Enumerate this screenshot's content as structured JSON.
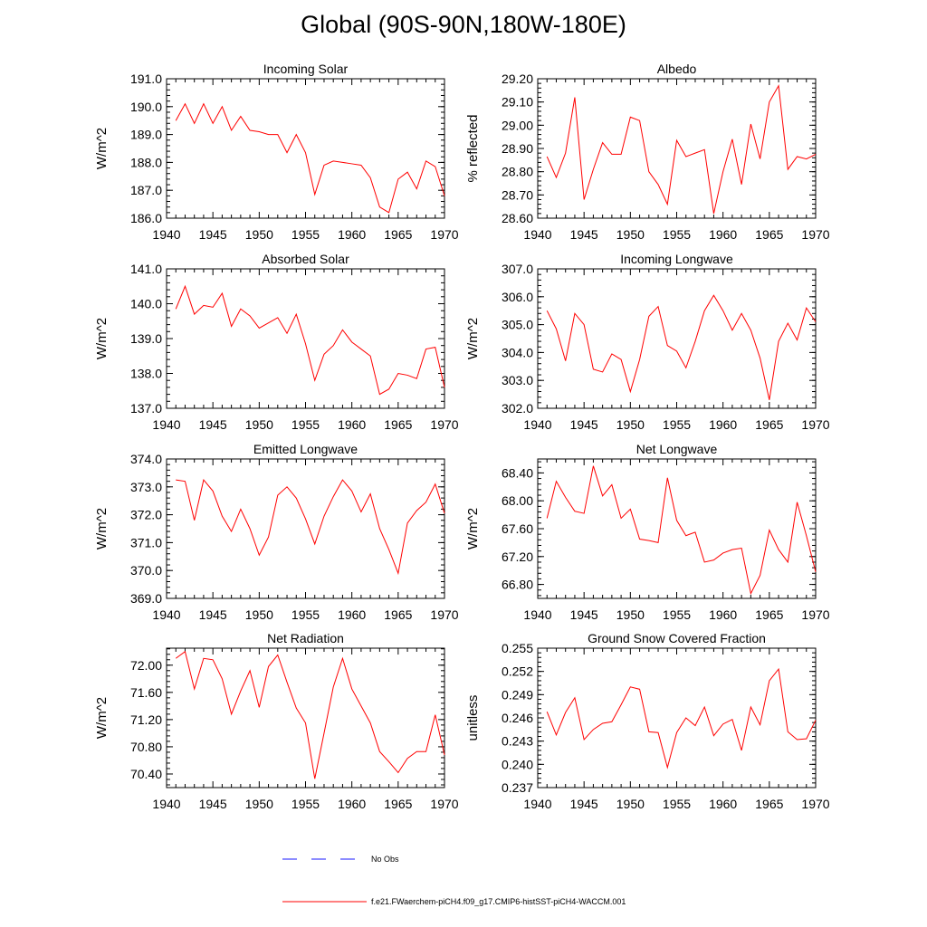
{
  "page_title": "Global (90S-90N,180W-180E)",
  "legend": {
    "obs_label": "No Obs",
    "obs_color": "#1a1aff",
    "model_label": "f.e21.FWaerchem-piCH4.f09_g17.CMIP6-histSST-piCH4-WACCM.001",
    "model_color": "#ff0000"
  },
  "chart_data": [
    {
      "type": "line",
      "title": "Incoming Solar",
      "ylabel": "W/m^2",
      "xlim": [
        1940,
        1970
      ],
      "ylim": [
        186.0,
        191.0
      ],
      "xticks": [
        1940,
        1945,
        1950,
        1955,
        1960,
        1965,
        1970
      ],
      "yticks": [
        "186.0",
        "187.0",
        "188.0",
        "189.0",
        "190.0",
        "191.0"
      ],
      "series": [
        {
          "color": "#ff0000",
          "x": [
            1941,
            1942,
            1943,
            1944,
            1945,
            1946,
            1947,
            1948,
            1949,
            1950,
            1951,
            1952,
            1953,
            1954,
            1955,
            1956,
            1957,
            1958,
            1959,
            1960,
            1961,
            1962,
            1963,
            1964,
            1965,
            1966,
            1967,
            1968,
            1969,
            1970
          ],
          "y": [
            189.5,
            190.1,
            189.4,
            190.1,
            189.4,
            190.0,
            189.15,
            189.65,
            189.15,
            189.1,
            189.0,
            189.0,
            188.35,
            189.0,
            188.35,
            186.85,
            187.9,
            188.05,
            188.0,
            187.95,
            187.9,
            187.45,
            186.4,
            186.2,
            187.4,
            187.65,
            187.05,
            188.05,
            187.85,
            186.8
          ]
        }
      ]
    },
    {
      "type": "line",
      "title": "Albedo",
      "ylabel": "% reflected",
      "xlim": [
        1940,
        1970
      ],
      "ylim": [
        28.6,
        29.2
      ],
      "xticks": [
        1940,
        1945,
        1950,
        1955,
        1960,
        1965,
        1970
      ],
      "yticks": [
        "28.60",
        "28.70",
        "28.80",
        "28.90",
        "29.00",
        "29.10",
        "29.20"
      ],
      "series": [
        {
          "color": "#ff0000",
          "x": [
            1941,
            1942,
            1943,
            1944,
            1945,
            1946,
            1947,
            1948,
            1949,
            1950,
            1951,
            1952,
            1953,
            1954,
            1955,
            1956,
            1957,
            1958,
            1959,
            1960,
            1961,
            1962,
            1963,
            1964,
            1965,
            1966,
            1967,
            1968,
            1969,
            1970
          ],
          "y": [
            28.865,
            28.775,
            28.88,
            29.12,
            28.68,
            28.81,
            28.925,
            28.875,
            28.875,
            29.035,
            29.02,
            28.8,
            28.745,
            28.66,
            28.935,
            28.865,
            28.88,
            28.895,
            28.62,
            28.8,
            28.94,
            28.745,
            29.005,
            28.855,
            29.1,
            29.17,
            28.81,
            28.865,
            28.855,
            28.875
          ]
        }
      ]
    },
    {
      "type": "line",
      "title": "Absorbed Solar",
      "ylabel": "W/m^2",
      "xlim": [
        1940,
        1970
      ],
      "ylim": [
        137.0,
        141.0
      ],
      "xticks": [
        1940,
        1945,
        1950,
        1955,
        1960,
        1965,
        1970
      ],
      "yticks": [
        "137.0",
        "138.0",
        "139.0",
        "140.0",
        "141.0"
      ],
      "series": [
        {
          "color": "#ff0000",
          "x": [
            1941,
            1942,
            1943,
            1944,
            1945,
            1946,
            1947,
            1948,
            1949,
            1950,
            1951,
            1952,
            1953,
            1954,
            1955,
            1956,
            1957,
            1958,
            1959,
            1960,
            1961,
            1962,
            1963,
            1964,
            1965,
            1966,
            1967,
            1968,
            1969,
            1970
          ],
          "y": [
            139.85,
            140.5,
            139.7,
            139.95,
            139.9,
            140.3,
            139.35,
            139.85,
            139.65,
            139.3,
            139.45,
            139.6,
            139.15,
            139.7,
            138.85,
            137.8,
            138.55,
            138.8,
            139.25,
            138.9,
            138.7,
            138.5,
            137.4,
            137.55,
            138.0,
            137.95,
            137.85,
            138.7,
            138.75,
            137.6
          ]
        }
      ]
    },
    {
      "type": "line",
      "title": "Incoming Longwave",
      "ylabel": "W/m^2",
      "xlim": [
        1940,
        1970
      ],
      "ylim": [
        302.0,
        307.0
      ],
      "xticks": [
        1940,
        1945,
        1950,
        1955,
        1960,
        1965,
        1970
      ],
      "yticks": [
        "302.0",
        "303.0",
        "304.0",
        "305.0",
        "306.0",
        "307.0"
      ],
      "series": [
        {
          "color": "#ff0000",
          "x": [
            1941,
            1942,
            1943,
            1944,
            1945,
            1946,
            1947,
            1948,
            1949,
            1950,
            1951,
            1952,
            1953,
            1954,
            1955,
            1956,
            1957,
            1958,
            1959,
            1960,
            1961,
            1962,
            1963,
            1964,
            1965,
            1966,
            1967,
            1968,
            1969,
            1970
          ],
          "y": [
            305.5,
            304.85,
            303.7,
            305.4,
            305.0,
            303.4,
            303.3,
            303.95,
            303.75,
            302.6,
            303.75,
            305.3,
            305.65,
            304.25,
            304.05,
            303.45,
            304.4,
            305.5,
            306.05,
            305.5,
            304.8,
            305.4,
            304.8,
            303.8,
            302.3,
            304.4,
            305.05,
            304.45,
            305.6,
            305.1
          ]
        }
      ]
    },
    {
      "type": "line",
      "title": "Emitted Longwave",
      "ylabel": "W/m^2",
      "xlim": [
        1940,
        1970
      ],
      "ylim": [
        369.0,
        374.0
      ],
      "xticks": [
        1940,
        1945,
        1950,
        1955,
        1960,
        1965,
        1970
      ],
      "yticks": [
        "369.0",
        "370.0",
        "371.0",
        "372.0",
        "373.0",
        "374.0"
      ],
      "series": [
        {
          "color": "#ff0000",
          "x": [
            1941,
            1942,
            1943,
            1944,
            1945,
            1946,
            1947,
            1948,
            1949,
            1950,
            1951,
            1952,
            1953,
            1954,
            1955,
            1956,
            1957,
            1958,
            1959,
            1960,
            1961,
            1962,
            1963,
            1964,
            1965,
            1966,
            1967,
            1968,
            1969,
            1970
          ],
          "y": [
            373.25,
            373.2,
            371.8,
            373.25,
            372.85,
            371.95,
            371.4,
            372.2,
            371.5,
            370.55,
            371.2,
            372.7,
            373.0,
            372.6,
            371.85,
            370.95,
            371.95,
            372.65,
            373.25,
            372.85,
            372.1,
            372.75,
            371.5,
            370.75,
            369.9,
            371.7,
            372.15,
            372.45,
            373.1,
            372.05
          ]
        }
      ]
    },
    {
      "type": "line",
      "title": "Net Longwave",
      "ylabel": "W/m^2",
      "xlim": [
        1940,
        1970
      ],
      "ylim": [
        66.6,
        68.6
      ],
      "xticks": [
        1940,
        1945,
        1950,
        1955,
        1960,
        1965,
        1970
      ],
      "yticks": [
        "66.80",
        "67.20",
        "67.60",
        "68.00",
        "68.40"
      ],
      "series": [
        {
          "color": "#ff0000",
          "x": [
            1941,
            1942,
            1943,
            1944,
            1945,
            1946,
            1947,
            1948,
            1949,
            1950,
            1951,
            1952,
            1953,
            1954,
            1955,
            1956,
            1957,
            1958,
            1959,
            1960,
            1961,
            1962,
            1963,
            1964,
            1965,
            1966,
            1967,
            1968,
            1969,
            1970
          ],
          "y": [
            67.75,
            68.28,
            68.05,
            67.85,
            67.82,
            68.5,
            68.07,
            68.23,
            67.75,
            67.88,
            67.45,
            67.43,
            67.4,
            68.33,
            67.72,
            67.5,
            67.55,
            67.12,
            67.15,
            67.25,
            67.3,
            67.32,
            66.67,
            66.93,
            67.58,
            67.3,
            67.12,
            67.98,
            67.5,
            66.98
          ]
        }
      ]
    },
    {
      "type": "line",
      "title": "Net Radiation",
      "ylabel": "W/m^2",
      "xlim": [
        1940,
        1970
      ],
      "ylim": [
        70.2,
        72.25
      ],
      "xticks": [
        1940,
        1945,
        1950,
        1955,
        1960,
        1965,
        1970
      ],
      "yticks": [
        "70.40",
        "70.80",
        "71.20",
        "71.60",
        "72.00"
      ],
      "series": [
        {
          "color": "#ff0000",
          "x": [
            1941,
            1942,
            1943,
            1944,
            1945,
            1946,
            1947,
            1948,
            1949,
            1950,
            1951,
            1952,
            1953,
            1954,
            1955,
            1956,
            1957,
            1958,
            1959,
            1960,
            1961,
            1962,
            1963,
            1964,
            1965,
            1966,
            1967,
            1968,
            1969,
            1970
          ],
          "y": [
            72.1,
            72.2,
            71.65,
            72.1,
            72.08,
            71.8,
            71.28,
            71.62,
            71.92,
            71.38,
            71.98,
            72.15,
            71.75,
            71.37,
            71.15,
            70.33,
            71.0,
            71.68,
            72.1,
            71.65,
            71.4,
            71.15,
            70.73,
            70.58,
            70.42,
            70.63,
            70.73,
            70.73,
            71.27,
            70.68
          ]
        }
      ]
    },
    {
      "type": "line",
      "title": "Ground Snow Covered Fraction",
      "ylabel": "unitless",
      "xlim": [
        1940,
        1970
      ],
      "ylim": [
        0.237,
        0.255
      ],
      "xticks": [
        1940,
        1945,
        1950,
        1955,
        1960,
        1965,
        1970
      ],
      "yticks": [
        "0.237",
        "0.240",
        "0.243",
        "0.246",
        "0.249",
        "0.252",
        "0.255"
      ],
      "series": [
        {
          "color": "#ff0000",
          "x": [
            1941,
            1942,
            1943,
            1944,
            1945,
            1946,
            1947,
            1948,
            1949,
            1950,
            1951,
            1952,
            1953,
            1954,
            1955,
            1956,
            1957,
            1958,
            1959,
            1960,
            1961,
            1962,
            1963,
            1964,
            1965,
            1966,
            1967,
            1968,
            1969,
            1970
          ],
          "y": [
            0.2468,
            0.2438,
            0.2467,
            0.2486,
            0.2432,
            0.2445,
            0.2453,
            0.2455,
            0.2477,
            0.25,
            0.2497,
            0.2442,
            0.2441,
            0.2396,
            0.2441,
            0.246,
            0.245,
            0.2474,
            0.2437,
            0.2452,
            0.2458,
            0.2418,
            0.2474,
            0.2451,
            0.2508,
            0.2523,
            0.2442,
            0.2432,
            0.2433,
            0.2457
          ]
        }
      ]
    }
  ]
}
